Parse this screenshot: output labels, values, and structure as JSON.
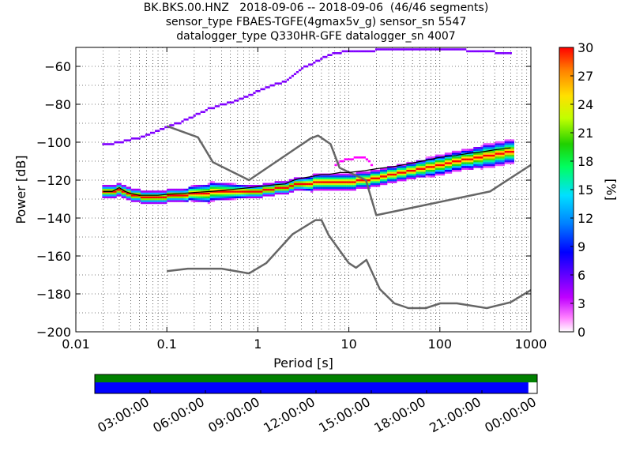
{
  "title": {
    "line1": "BK.BKS.00.HNZ   2018-09-06 -- 2018-09-06  (46/46 segments)",
    "line2": "sensor_type FBAES-TGFE(4gmax5v_g) sensor_sn 5547",
    "line3": "datalogger_type Q330HR-GFE datalogger_sn 4007"
  },
  "colorbar": {
    "label": "[%]",
    "ticks": [
      "0",
      "3",
      "6",
      "9",
      "12",
      "15",
      "18",
      "21",
      "24",
      "27",
      "30"
    ],
    "min": 0,
    "max": 30,
    "colormap": "pqlx"
  },
  "chart_data": [
    {
      "type": "heatmap",
      "xlabel": "Period [s]",
      "ylabel": "Power [dB]",
      "x_scale": "log",
      "xlim": [
        0.01,
        1000
      ],
      "ylim": [
        -200,
        -50
      ],
      "x_ticks": [
        "0.01",
        "0.1",
        "1",
        "10",
        "100",
        "1000"
      ],
      "y_ticks": [
        "−200",
        "−180",
        "−160",
        "−140",
        "−120",
        "−100",
        "−80",
        "−60"
      ],
      "grid": true,
      "noise_models": {
        "color": "#666666",
        "NHNM_accel": {
          "x": [
            0.1,
            0.22,
            0.32,
            0.8,
            3.8,
            4.6,
            6.3,
            7.9,
            15.4,
            20,
            354.8,
            1000
          ],
          "y": [
            -91.5,
            -97.4,
            -110.5,
            -120,
            -98,
            -96.5,
            -101,
            -113.5,
            -120,
            -138.5,
            -126,
            -112
          ]
        },
        "NLNM_accel": {
          "x": [
            0.1,
            0.17,
            0.4,
            0.8,
            1.24,
            2.4,
            4.3,
            5,
            6,
            10,
            12,
            15.6,
            21.9,
            31.6,
            45,
            70,
            101,
            154,
            328,
            600,
            1000
          ],
          "y": [
            -168,
            -166.7,
            -166.7,
            -169.2,
            -163.7,
            -148.6,
            -141.1,
            -141.1,
            -149,
            -163.8,
            -166.2,
            -162.1,
            -177.5,
            -185,
            -187.5,
            -187.5,
            -185,
            -185,
            -187.5,
            -184.4,
            -178
          ]
        }
      },
      "series": [
        {
          "name": "",
          "color": "#000000",
          "x": [
            0.02,
            0.025,
            0.03,
            0.035,
            0.04,
            0.05,
            0.06,
            0.08,
            0.1,
            0.15,
            0.2,
            0.3,
            0.5,
            0.8,
            1.0,
            1.5,
            2.0,
            2.5,
            3.0,
            4.0,
            5.0,
            6.0,
            8.0,
            10,
            15,
            20,
            30,
            50,
            80,
            100,
            150,
            200,
            300,
            400,
            600
          ],
          "y": [
            -126,
            -126,
            -124,
            -126,
            -127,
            -128,
            -128,
            -128,
            -127.5,
            -127,
            -126.5,
            -126,
            -125,
            -124,
            -123.5,
            -122.5,
            -122,
            -120,
            -119,
            -118,
            -117,
            -117,
            -116,
            -116,
            -115,
            -114,
            -113,
            -111,
            -109,
            -108,
            -107,
            -106,
            -105,
            -104,
            -103
          ]
        }
      ],
      "density_band": {
        "x": [
          0.02,
          0.025,
          0.03,
          0.035,
          0.04,
          0.05,
          0.06,
          0.08,
          0.1,
          0.15,
          0.2,
          0.3,
          0.5,
          0.8,
          1.0,
          1.5,
          2.0,
          2.5,
          3.0,
          4.0,
          5.0,
          6.0,
          8.0,
          10,
          15,
          20,
          30,
          50,
          80,
          100,
          150,
          200,
          300,
          400,
          600
        ],
        "center": [
          -126,
          -126,
          -125,
          -126.5,
          -127.5,
          -128.5,
          -129,
          -129,
          -128.5,
          -128,
          -127,
          -126.5,
          -126,
          -126,
          -126,
          -124.5,
          -124,
          -122.5,
          -122,
          -121.5,
          -121,
          -121,
          -121,
          -121,
          -120,
          -119,
          -117,
          -115,
          -113,
          -112,
          -110,
          -109,
          -107.5,
          -106.5,
          -105
        ],
        "spread_db": [
          2,
          2,
          2,
          2,
          2,
          2,
          2,
          2,
          2,
          2,
          3,
          4,
          3,
          2,
          2,
          2,
          2,
          2,
          2,
          3,
          3,
          3,
          3,
          3,
          3,
          3,
          3,
          3,
          4,
          4,
          4,
          4,
          5,
          5,
          5
        ]
      },
      "outlier_track_high": {
        "color": "#8000ff",
        "x": [
          0.02,
          0.03,
          0.05,
          0.08,
          0.1,
          0.15,
          0.2,
          0.3,
          0.5,
          0.8,
          1,
          1.5,
          2,
          3,
          4,
          5,
          7,
          10,
          20,
          50,
          100,
          200,
          400,
          600
        ],
        "y": [
          -101.5,
          -100,
          -97.5,
          -94,
          -92,
          -89,
          -86,
          -82,
          -79,
          -75.5,
          -73,
          -69.5,
          -68,
          -61,
          -58.5,
          -56,
          -53,
          -52,
          -51.5,
          -51,
          -51,
          -51.5,
          -52.5,
          -53
        ]
      },
      "outlier_track_mid": {
        "color": "#ff00ff",
        "x": [
          7,
          8,
          10,
          12,
          15,
          18
        ],
        "y": [
          -113,
          -110,
          -109,
          -108,
          -108,
          -112
        ]
      }
    },
    {
      "type": "bar",
      "title": "",
      "categories": [
        "03:00:00",
        "06:00:00",
        "09:00:00",
        "12:00:00",
        "15:00:00",
        "18:00:00",
        "21:00:00",
        "00:00:00"
      ],
      "series": [
        {
          "name": "",
          "color": "#008000",
          "coverage_fraction": 1.0
        },
        {
          "name": "",
          "color": "#0000ff",
          "coverage_fraction": 0.98
        }
      ]
    }
  ]
}
